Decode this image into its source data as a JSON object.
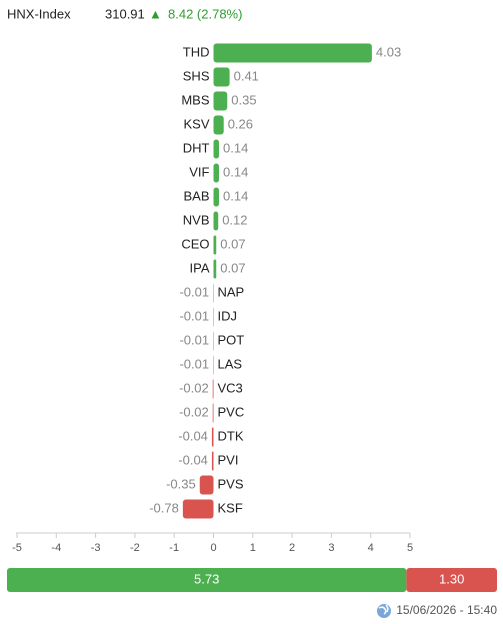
{
  "header": {
    "index_name": "HNX-Index",
    "index_value": "310.91",
    "arrow": "▲",
    "change": "8.42 (2.78%)"
  },
  "chart_data": {
    "type": "bar",
    "orientation": "horizontal",
    "categories": [
      "THD",
      "SHS",
      "MBS",
      "KSV",
      "DHT",
      "VIF",
      "BAB",
      "NVB",
      "CEO",
      "IPA",
      "NAP",
      "IDJ",
      "POT",
      "LAS",
      "VC3",
      "PVC",
      "DTK",
      "PVI",
      "PVS",
      "KSF"
    ],
    "values": [
      4.03,
      0.41,
      0.35,
      0.26,
      0.14,
      0.14,
      0.14,
      0.12,
      0.07,
      0.07,
      -0.01,
      -0.01,
      -0.01,
      -0.01,
      -0.02,
      -0.02,
      -0.04,
      -0.04,
      -0.35,
      -0.78
    ],
    "positive_color": "#4caf50",
    "negative_color": "#d9534f",
    "xlim": [
      -5,
      5
    ],
    "xticks": [
      -5,
      -4,
      -3,
      -2,
      -1,
      0,
      1,
      2,
      3,
      4,
      5
    ]
  },
  "breadth": {
    "values": [
      5.73,
      1.3
    ],
    "value_labels": [
      "5.73",
      "1.30"
    ],
    "colors": [
      "#4caf50",
      "#d9534f"
    ]
  },
  "timestamp": "15/06/2026 - 15:40"
}
